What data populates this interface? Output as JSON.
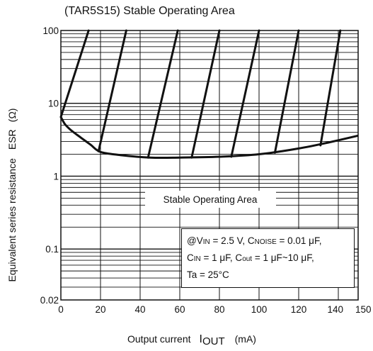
{
  "chart_data": {
    "type": "line",
    "title": "(TAR5S15)  Stable Operating Area",
    "xlabel": {
      "text": "Output current",
      "symbol_main": "I",
      "symbol_sub": "OUT",
      "unit": "(mA)"
    },
    "ylabel": {
      "text": "Equivalent series resistance",
      "symbol": "ESR",
      "unit": "(Ω)"
    },
    "x_scale": "linear",
    "y_scale": "log",
    "xlim": [
      0,
      150
    ],
    "ylim": [
      0.02,
      100
    ],
    "x_ticks": [
      "0",
      "20",
      "40",
      "60",
      "80",
      "100",
      "120",
      "140",
      "150"
    ],
    "y_ticks": [
      {
        "value": 100,
        "label": "100"
      },
      {
        "value": 10,
        "label": "10"
      },
      {
        "value": 1,
        "label": "1"
      },
      {
        "value": 0.1,
        "label": "0.1"
      },
      {
        "value": 0.02,
        "label": "0.02"
      }
    ],
    "grid": true,
    "boundary": {
      "x": [
        0,
        2,
        5,
        10,
        15,
        20,
        30,
        45,
        60,
        80,
        100,
        120,
        135,
        150
      ],
      "y": [
        6.5,
        5.2,
        4.3,
        3.4,
        2.7,
        2.15,
        1.95,
        1.8,
        1.8,
        1.85,
        2.0,
        2.4,
        2.9,
        3.6
      ]
    },
    "hatch_lines": [
      {
        "x": [
          0,
          14
        ],
        "y": [
          6.5,
          100
        ]
      },
      {
        "x": [
          19,
          33
        ],
        "y": [
          2.2,
          100
        ]
      },
      {
        "x": [
          44,
          59
        ],
        "y": [
          1.8,
          100
        ]
      },
      {
        "x": [
          66,
          80
        ],
        "y": [
          1.8,
          100
        ]
      },
      {
        "x": [
          86,
          100
        ],
        "y": [
          1.85,
          100
        ]
      },
      {
        "x": [
          108,
          120
        ],
        "y": [
          2.1,
          100
        ]
      },
      {
        "x": [
          131,
          141
        ],
        "y": [
          2.65,
          100
        ]
      }
    ],
    "region_label": "Stable Operating Area",
    "conditions": {
      "line1_pre": "@V",
      "line1_sub1": "IN",
      "line1_mid": " = 2.5 V, C",
      "line1_sub2": "NOISE",
      "line1_post": " = 0.01 μF,",
      "line2_pre": "C",
      "line2_sub1": "IN",
      "line2_mid": " = 1 μF, C",
      "line2_sub2": "out",
      "line2_post": " = 1 μF~10 μF,",
      "line3": "Ta = 25°C"
    }
  }
}
